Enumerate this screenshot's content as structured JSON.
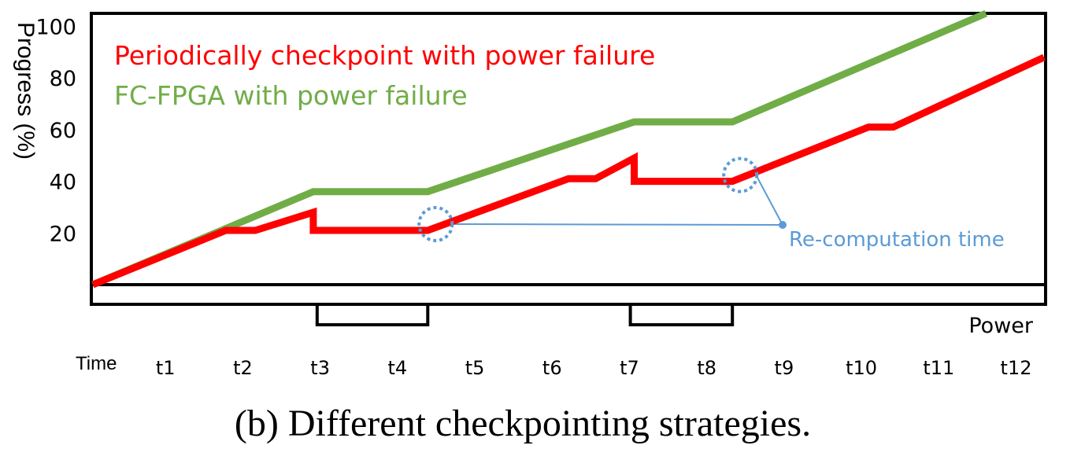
{
  "chart_data": {
    "type": "line",
    "ylabel": "Progress (%)",
    "xlabel": "Time",
    "caption": "(b) Different checkpointing strategies.",
    "yticks": [
      20,
      40,
      60,
      80,
      100
    ],
    "ylim": [
      0,
      105
    ],
    "xticks": [
      "t1",
      "t2",
      "t3",
      "t4",
      "t5",
      "t6",
      "t7",
      "t8",
      "t9",
      "t10",
      "t11",
      "t12"
    ],
    "xlim": [
      0,
      12.3
    ],
    "series": [
      {
        "name": "Periodically checkpoint with power failure",
        "color": "#ff0000",
        "points": [
          [
            0,
            0
          ],
          [
            1.72,
            21
          ],
          [
            2.1,
            21
          ],
          [
            2.85,
            28
          ],
          [
            2.85,
            21
          ],
          [
            4.33,
            21
          ],
          [
            6.15,
            41
          ],
          [
            6.5,
            41
          ],
          [
            7.0,
            49
          ],
          [
            7.0,
            40
          ],
          [
            8.27,
            40
          ],
          [
            10.03,
            61
          ],
          [
            10.35,
            61
          ],
          [
            12.3,
            88
          ]
        ]
      },
      {
        "name": "FC-FPGA with power failure",
        "color": "#70ad47",
        "points": [
          [
            0,
            0
          ],
          [
            2.85,
            36
          ],
          [
            4.33,
            36
          ],
          [
            7.0,
            63
          ],
          [
            8.27,
            63
          ],
          [
            11.55,
            105
          ]
        ]
      }
    ],
    "power_signal": {
      "label": "Power",
      "color": "#000000",
      "steps": [
        {
          "from": 0,
          "to": 2.9,
          "state": "on"
        },
        {
          "from": 2.9,
          "to": 4.33,
          "state": "off"
        },
        {
          "from": 4.33,
          "to": 6.95,
          "state": "on"
        },
        {
          "from": 6.95,
          "to": 8.27,
          "state": "off"
        },
        {
          "from": 8.27,
          "to": 12.3,
          "state": "on"
        }
      ]
    },
    "annotation": {
      "text": "Re-computation time",
      "color": "#5b9bd5",
      "points": [
        [
          4.33,
          21
        ],
        [
          8.27,
          40
        ]
      ]
    }
  }
}
